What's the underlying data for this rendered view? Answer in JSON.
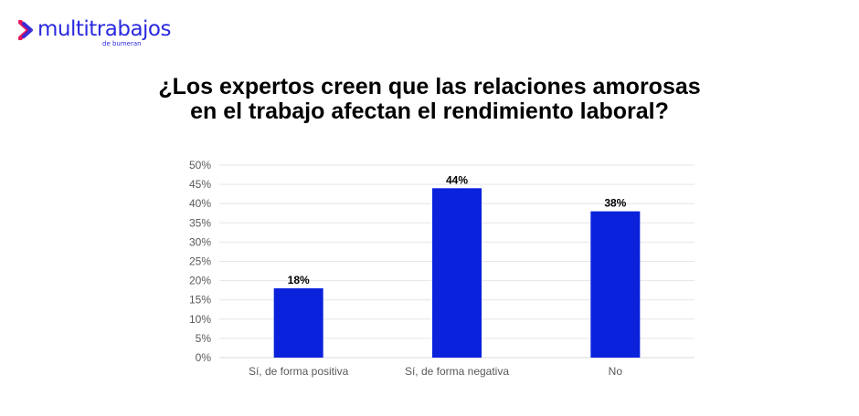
{
  "brand": {
    "name": "multitrabajos",
    "tagline": "de bumeran",
    "logo_icon": "chevron-right-icon",
    "colors": {
      "primary": "#2a2ae0",
      "accent": "#e8175d"
    }
  },
  "chart_data": {
    "type": "bar",
    "title": "¿Los expertos creen que las relaciones amorosas en el trabajo afectan el rendimiento laboral?",
    "title_lines": [
      "¿Los expertos creen que las relaciones amorosas",
      "en el trabajo afectan el rendimiento laboral?"
    ],
    "categories": [
      "Sí, de forma positiva",
      "Sí, de forma negativa",
      "No"
    ],
    "values": [
      18,
      44,
      38
    ],
    "data_labels": [
      "18%",
      "44%",
      "38%"
    ],
    "xlabel": "",
    "ylabel": "",
    "ylim": [
      0,
      50
    ],
    "yticks": [
      0,
      5,
      10,
      15,
      20,
      25,
      30,
      35,
      40,
      45,
      50
    ],
    "ytick_labels": [
      "0%",
      "5%",
      "10%",
      "15%",
      "20%",
      "25%",
      "30%",
      "35%",
      "40%",
      "45%",
      "50%"
    ],
    "grid": true,
    "legend": "none",
    "bar_color": "#0a22dc"
  }
}
